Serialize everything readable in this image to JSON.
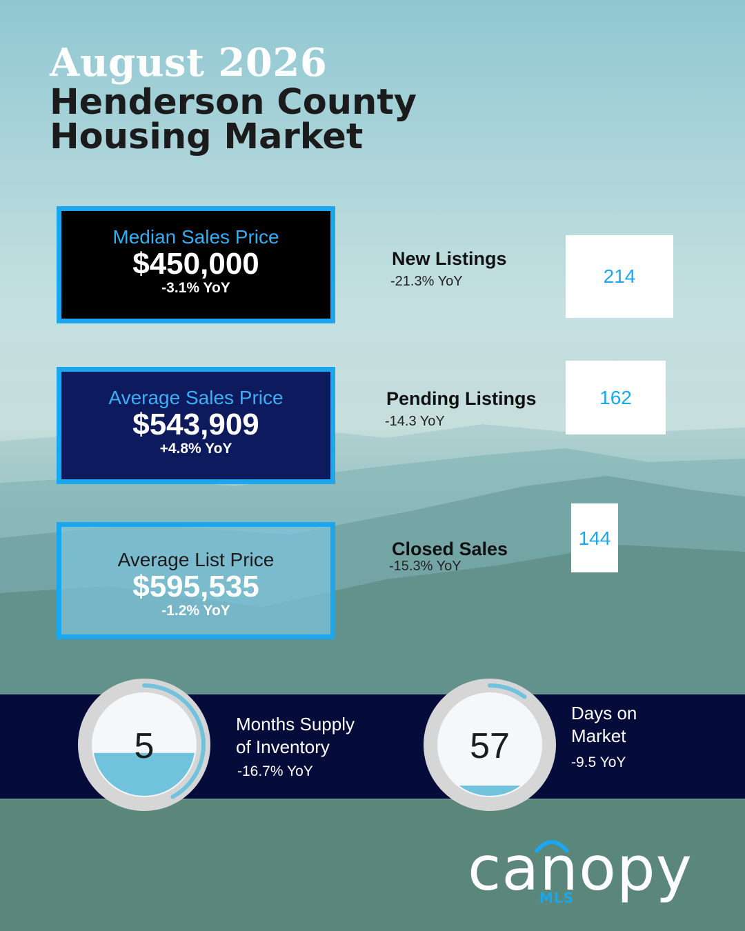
{
  "header": {
    "year_line": "August 2026",
    "title_line1": "Henderson County",
    "title_line2": "Housing Market"
  },
  "price_stats": [
    {
      "label": "Median Sales Price",
      "value": "$450,000",
      "change": "-3.1% YoY"
    },
    {
      "label": "Average Sales Price",
      "value": "$543,909",
      "change": "+4.8% YoY"
    },
    {
      "label": "Average List Price",
      "value": "$595,535",
      "change": "-1.2% YoY"
    }
  ],
  "listing_stats": [
    {
      "name": "New Listings",
      "change": "-21.3% YoY",
      "value": "214"
    },
    {
      "name": "Pending Listings",
      "change": "-14.3 YoY",
      "value": "162"
    },
    {
      "name": "Closed Sales",
      "change": "-15.3% YoY",
      "value": "144"
    }
  ],
  "gauges": [
    {
      "value": "5",
      "label_line1": "Months Supply",
      "label_line2": "of Inventory",
      "change": "-16.7% YoY",
      "fill_fraction": 0.42
    },
    {
      "value": "57",
      "label_line1": "Days on",
      "label_line2": "Market",
      "change": "-9.5 YoY",
      "fill_fraction": 0.1
    }
  ],
  "logo": {
    "word": "canopy",
    "sub": "MLS"
  },
  "colors": {
    "accent": "#1aa7ee",
    "navy": "#050c3a",
    "gauge_fill": "#71c3dd"
  }
}
